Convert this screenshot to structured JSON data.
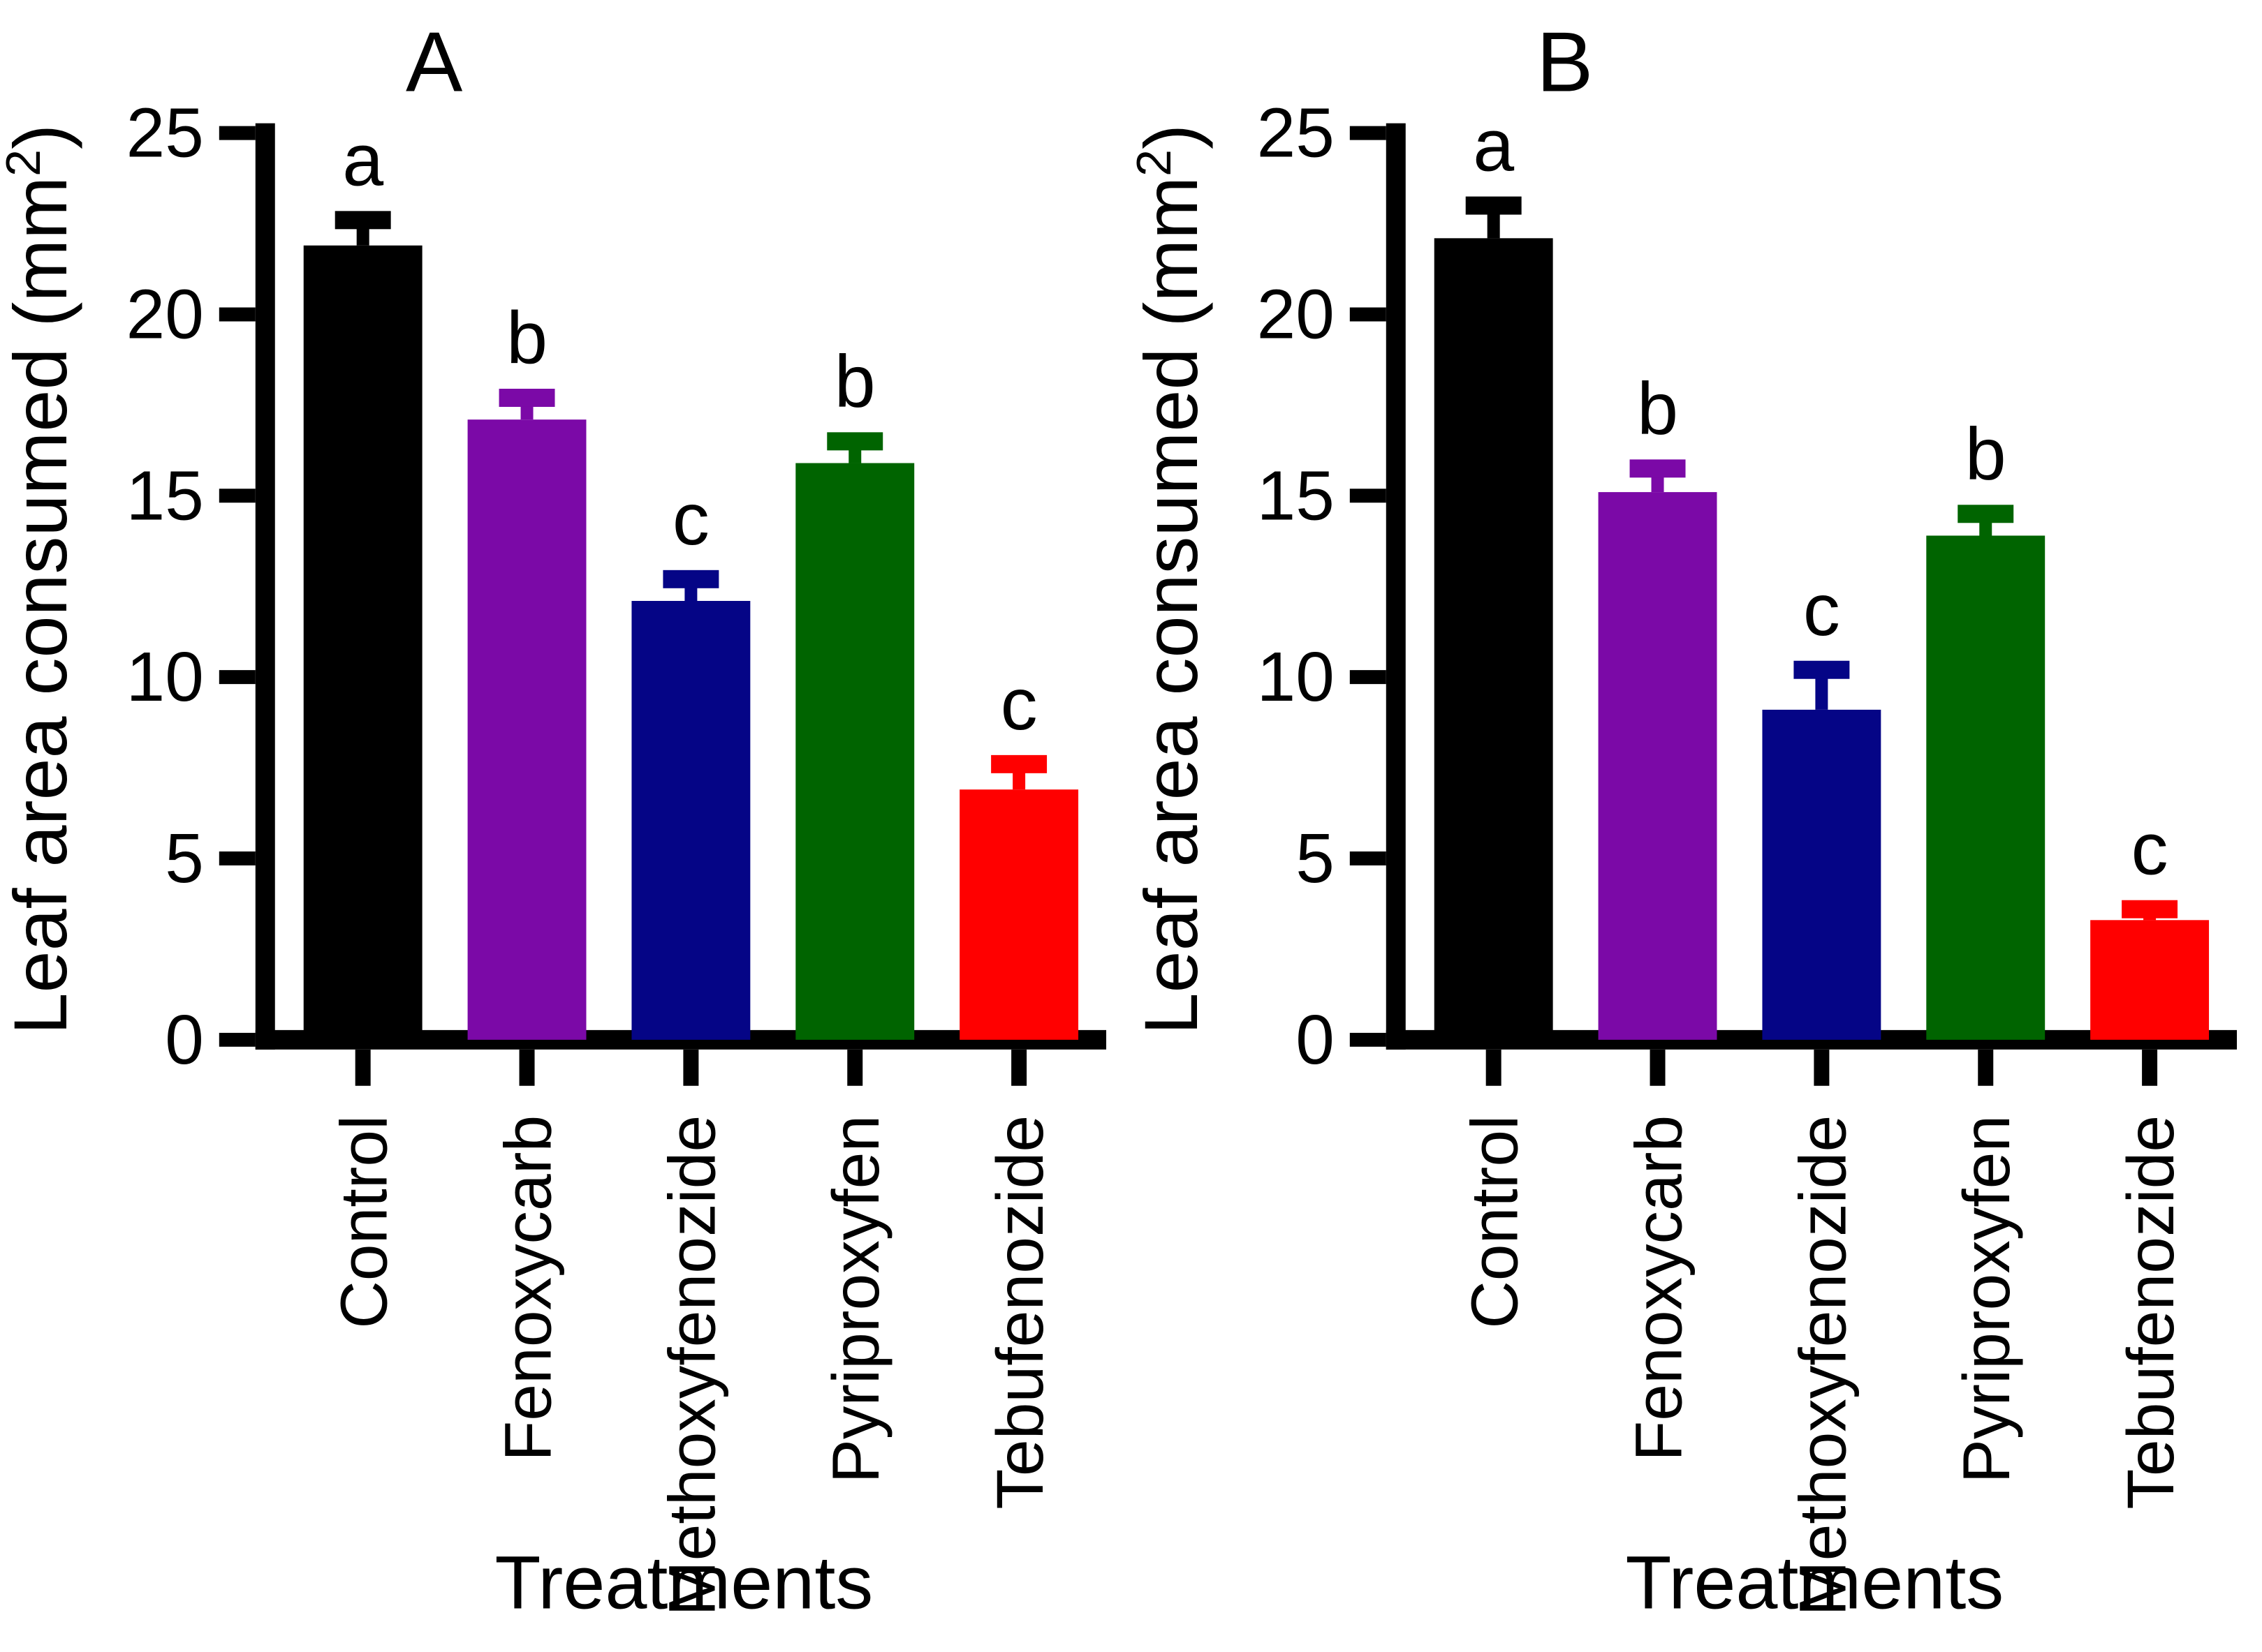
{
  "figure_labels": {
    "ylabel_main": "Leaf area consumed (mm",
    "ylabel_sup": "2",
    "ylabel_close": ")",
    "xlabel": "Treatments"
  },
  "chart_data": [
    {
      "type": "bar",
      "panel_label": "A",
      "xlabel": "Treatments",
      "ylabel": "Leaf area consumed (mm2)",
      "ylim": [
        0,
        25
      ],
      "yticks": [
        0,
        5,
        10,
        15,
        20,
        25
      ],
      "grid": "off",
      "legend": "none",
      "categories": [
        "Control",
        "Fenoxycarb",
        "Methoxyfenozide",
        "Pyriproxyfen",
        "Tebufenozide"
      ],
      "values": [
        21.9,
        17.1,
        12.1,
        15.9,
        6.9
      ],
      "errors": [
        0.7,
        0.6,
        0.6,
        0.6,
        0.7
      ],
      "sig_letters": [
        "a",
        "b",
        "c",
        "b",
        "c"
      ],
      "bar_colors": [
        "#000000",
        "#7B09A7",
        "#050586",
        "#006400",
        "#FF0000"
      ]
    },
    {
      "type": "bar",
      "panel_label": "B",
      "xlabel": "Treatments",
      "ylabel": "Leaf area consumed (mm2)",
      "ylim": [
        0,
        25
      ],
      "yticks": [
        0,
        5,
        10,
        15,
        20,
        25
      ],
      "grid": "off",
      "legend": "none",
      "categories": [
        "Control",
        "Fenoxycarb",
        "Methoxyfenozide",
        "Pyriproxyfen",
        "Tebufenozide"
      ],
      "values": [
        22.1,
        15.1,
        9.1,
        13.9,
        3.3
      ],
      "errors": [
        0.9,
        0.65,
        1.1,
        0.6,
        0.3
      ],
      "sig_letters": [
        "a",
        "b",
        "c",
        "b",
        "c"
      ],
      "bar_colors": [
        "#000000",
        "#7B09A7",
        "#050586",
        "#006400",
        "#FF0000"
      ]
    }
  ],
  "axis_color": "#000000",
  "background_color": "#ffffff"
}
